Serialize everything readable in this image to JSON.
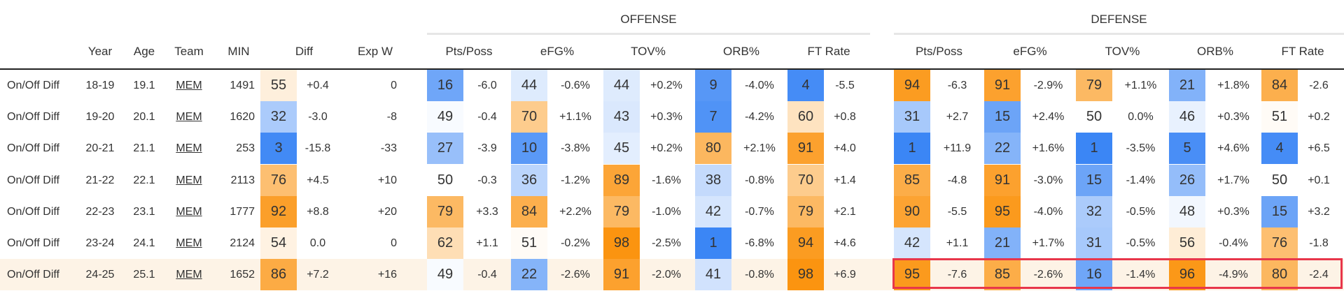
{
  "groups": {
    "offense": "OFFENSE",
    "defense": "DEFENSE"
  },
  "headers": {
    "year": "Year",
    "age": "Age",
    "team": "Team",
    "min": "MIN",
    "diff": "Diff",
    "expw": "Exp W",
    "off_pts": "Pts/Poss",
    "off_efg": "eFG%",
    "off_tov": "TOV%",
    "off_orb": "ORB%",
    "off_ft": "FT Rate",
    "def_pts": "Pts/Poss",
    "def_efg": "eFG%",
    "def_tov": "TOV%",
    "def_orb": "ORB%",
    "def_ft": "FT Rate"
  },
  "colors": {
    "blue": "#3b86f5",
    "orange": "#fb9410",
    "highlight_row": "#fdf3e6",
    "highlight_border": "#e8364a"
  },
  "rows": [
    {
      "label": "On/Off Diff",
      "year": "18-19",
      "age": "19.1",
      "team": "MEM",
      "min": "1491",
      "diff_pct": 55,
      "diff": "+0.4",
      "expw": "0",
      "o_pts_pct": 16,
      "o_pts": "-6.0",
      "o_efg_pct": 44,
      "o_efg": "-0.6%",
      "o_tov_pct": 44,
      "o_tov": "+0.2%",
      "o_orb_pct": 9,
      "o_orb": "-4.0%",
      "o_ft_pct": 4,
      "o_ft": "-5.5",
      "d_pts_pct": 94,
      "d_pts": "-6.3",
      "d_efg_pct": 91,
      "d_efg": "-2.9%",
      "d_tov_pct": 79,
      "d_tov": "+1.1%",
      "d_orb_pct": 21,
      "d_orb": "+1.8%",
      "d_ft_pct": 84,
      "d_ft": "-2.6"
    },
    {
      "label": "On/Off Diff",
      "year": "19-20",
      "age": "20.1",
      "team": "MEM",
      "min": "1620",
      "diff_pct": 32,
      "diff": "-3.0",
      "expw": "-8",
      "o_pts_pct": 49,
      "o_pts": "-0.4",
      "o_efg_pct": 70,
      "o_efg": "+1.1%",
      "o_tov_pct": 43,
      "o_tov": "+0.3%",
      "o_orb_pct": 7,
      "o_orb": "-4.2%",
      "o_ft_pct": 60,
      "o_ft": "+0.8",
      "d_pts_pct": 31,
      "d_pts": "+2.7",
      "d_efg_pct": 15,
      "d_efg": "+2.4%",
      "d_tov_pct": 50,
      "d_tov": "0.0%",
      "d_orb_pct": 46,
      "d_orb": "+0.3%",
      "d_ft_pct": 51,
      "d_ft": "+0.2"
    },
    {
      "label": "On/Off Diff",
      "year": "20-21",
      "age": "21.1",
      "team": "MEM",
      "min": "253",
      "diff_pct": 3,
      "diff": "-15.8",
      "expw": "-33",
      "o_pts_pct": 27,
      "o_pts": "-3.9",
      "o_efg_pct": 10,
      "o_efg": "-3.8%",
      "o_tov_pct": 45,
      "o_tov": "+0.2%",
      "o_orb_pct": 80,
      "o_orb": "+2.1%",
      "o_ft_pct": 91,
      "o_ft": "+4.0",
      "d_pts_pct": 1,
      "d_pts": "+11.9",
      "d_efg_pct": 22,
      "d_efg": "+1.6%",
      "d_tov_pct": 1,
      "d_tov": "-3.5%",
      "d_orb_pct": 5,
      "d_orb": "+4.6%",
      "d_ft_pct": 4,
      "d_ft": "+6.5"
    },
    {
      "label": "On/Off Diff",
      "year": "21-22",
      "age": "22.1",
      "team": "MEM",
      "min": "2113",
      "diff_pct": 76,
      "diff": "+4.5",
      "expw": "+10",
      "o_pts_pct": 50,
      "o_pts": "-0.3",
      "o_efg_pct": 36,
      "o_efg": "-1.2%",
      "o_tov_pct": 89,
      "o_tov": "-1.6%",
      "o_orb_pct": 38,
      "o_orb": "-0.8%",
      "o_ft_pct": 70,
      "o_ft": "+1.4",
      "d_pts_pct": 85,
      "d_pts": "-4.8",
      "d_efg_pct": 91,
      "d_efg": "-3.0%",
      "d_tov_pct": 15,
      "d_tov": "-1.4%",
      "d_orb_pct": 26,
      "d_orb": "+1.7%",
      "d_ft_pct": 50,
      "d_ft": "+0.1"
    },
    {
      "label": "On/Off Diff",
      "year": "22-23",
      "age": "23.1",
      "team": "MEM",
      "min": "1777",
      "diff_pct": 92,
      "diff": "+8.8",
      "expw": "+20",
      "o_pts_pct": 79,
      "o_pts": "+3.3",
      "o_efg_pct": 84,
      "o_efg": "+2.2%",
      "o_tov_pct": 79,
      "o_tov": "-1.0%",
      "o_orb_pct": 42,
      "o_orb": "-0.7%",
      "o_ft_pct": 79,
      "o_ft": "+2.1",
      "d_pts_pct": 90,
      "d_pts": "-5.5",
      "d_efg_pct": 95,
      "d_efg": "-4.0%",
      "d_tov_pct": 32,
      "d_tov": "-0.5%",
      "d_orb_pct": 48,
      "d_orb": "+0.3%",
      "d_ft_pct": 15,
      "d_ft": "+3.2"
    },
    {
      "label": "On/Off Diff",
      "year": "23-24",
      "age": "24.1",
      "team": "MEM",
      "min": "2124",
      "diff_pct": 54,
      "diff": "0.0",
      "expw": "0",
      "o_pts_pct": 62,
      "o_pts": "+1.1",
      "o_efg_pct": 51,
      "o_efg": "-0.2%",
      "o_tov_pct": 98,
      "o_tov": "-2.5%",
      "o_orb_pct": 1,
      "o_orb": "-6.8%",
      "o_ft_pct": 94,
      "o_ft": "+4.6",
      "d_pts_pct": 42,
      "d_pts": "+1.1",
      "d_efg_pct": 21,
      "d_efg": "+1.7%",
      "d_tov_pct": 31,
      "d_tov": "-0.5%",
      "d_orb_pct": 56,
      "d_orb": "-0.4%",
      "d_ft_pct": 76,
      "d_ft": "-1.8"
    },
    {
      "label": "On/Off Diff",
      "year": "24-25",
      "age": "25.1",
      "team": "MEM",
      "min": "1652",
      "diff_pct": 86,
      "diff": "+7.2",
      "expw": "+16",
      "o_pts_pct": 49,
      "o_pts": "-0.4",
      "o_efg_pct": 22,
      "o_efg": "-2.6%",
      "o_tov_pct": 91,
      "o_tov": "-2.0%",
      "o_orb_pct": 41,
      "o_orb": "-0.8%",
      "o_ft_pct": 98,
      "o_ft": "+6.9",
      "d_pts_pct": 95,
      "d_pts": "-7.6",
      "d_efg_pct": 85,
      "d_efg": "-2.6%",
      "d_tov_pct": 16,
      "d_tov": "-1.4%",
      "d_orb_pct": 96,
      "d_orb": "-4.9%",
      "d_ft_pct": 80,
      "d_ft": "-2.4"
    }
  ]
}
